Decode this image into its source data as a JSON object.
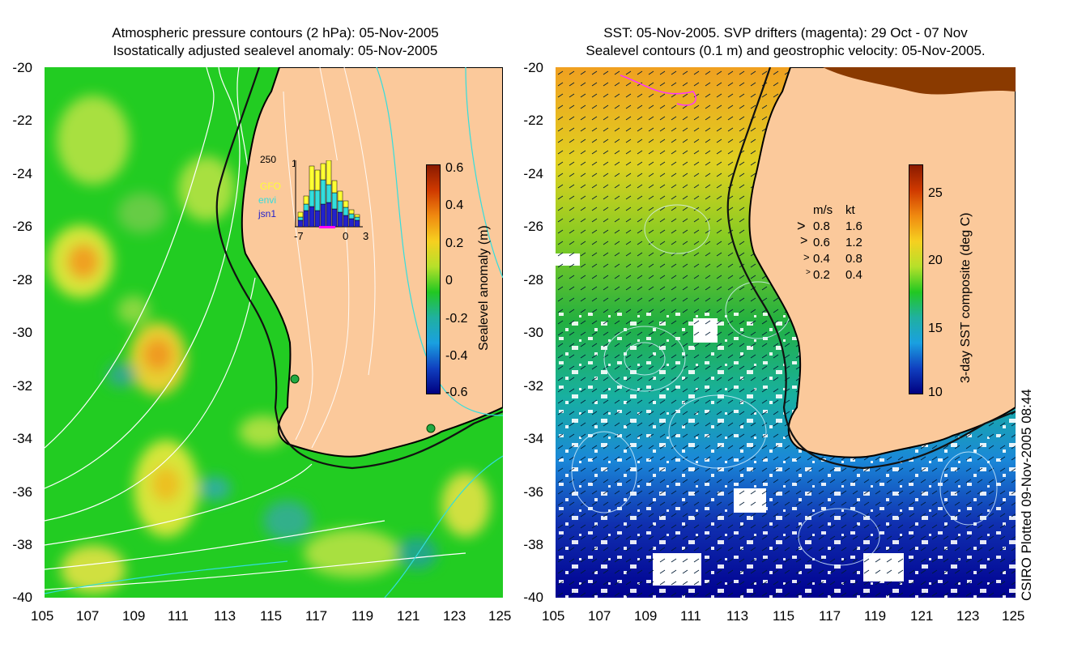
{
  "left_panel": {
    "title_line1": "Atmospheric pressure contours (2 hPa): 05-Nov-2005",
    "title_line2": "Isostatically adjusted sealevel anomaly: 05-Nov-2005",
    "colorbar": {
      "label": "Sealevel anomaly (m)",
      "ticks": [
        "0.6",
        "0.4",
        "0.2",
        "0",
        "-0.2",
        "-0.4",
        "-0.6"
      ]
    },
    "inset": {
      "y_label": "250",
      "y_top": "1",
      "missions": [
        {
          "name": "GFO",
          "color": "#ffff33"
        },
        {
          "name": "envi",
          "color": "#33dddd"
        },
        {
          "name": "jsn1",
          "color": "#2222cc"
        }
      ],
      "x_ticks": [
        "-7",
        "0",
        "3"
      ]
    }
  },
  "right_panel": {
    "title_line1": "SST: 05-Nov-2005. SVP drifters (magenta): 29 Oct - 07 Nov",
    "title_line2": "Sealevel contours (0.1 m) and geostrophic velocity: 05-Nov-2005.",
    "colorbar": {
      "label": "3-day SST composite (deg C)",
      "ticks": [
        "25",
        "20",
        "15",
        "10"
      ]
    },
    "velocity_legend": {
      "header_ms": "m/s",
      "header_kt": "kt",
      "rows": [
        {
          "ms": "0.8",
          "kt": "1.6"
        },
        {
          "ms": "0.6",
          "kt": "1.2"
        },
        {
          "ms": "0.4",
          "kt": "0.8"
        },
        {
          "ms": "0.2",
          "kt": "0.4"
        }
      ]
    }
  },
  "axes": {
    "x_ticks": [
      "105",
      "107",
      "109",
      "111",
      "113",
      "115",
      "117",
      "119",
      "121",
      "123",
      "125"
    ],
    "y_ticks": [
      "-20",
      "-22",
      "-24",
      "-26",
      "-28",
      "-30",
      "-32",
      "-34",
      "-36",
      "-38",
      "-40"
    ]
  },
  "credit": "CSIRO Plotted 09-Nov-2005 08:44",
  "colors": {
    "land": "#fbc99b",
    "ocean_anomaly": "#22cc22",
    "coast": "#000000"
  }
}
